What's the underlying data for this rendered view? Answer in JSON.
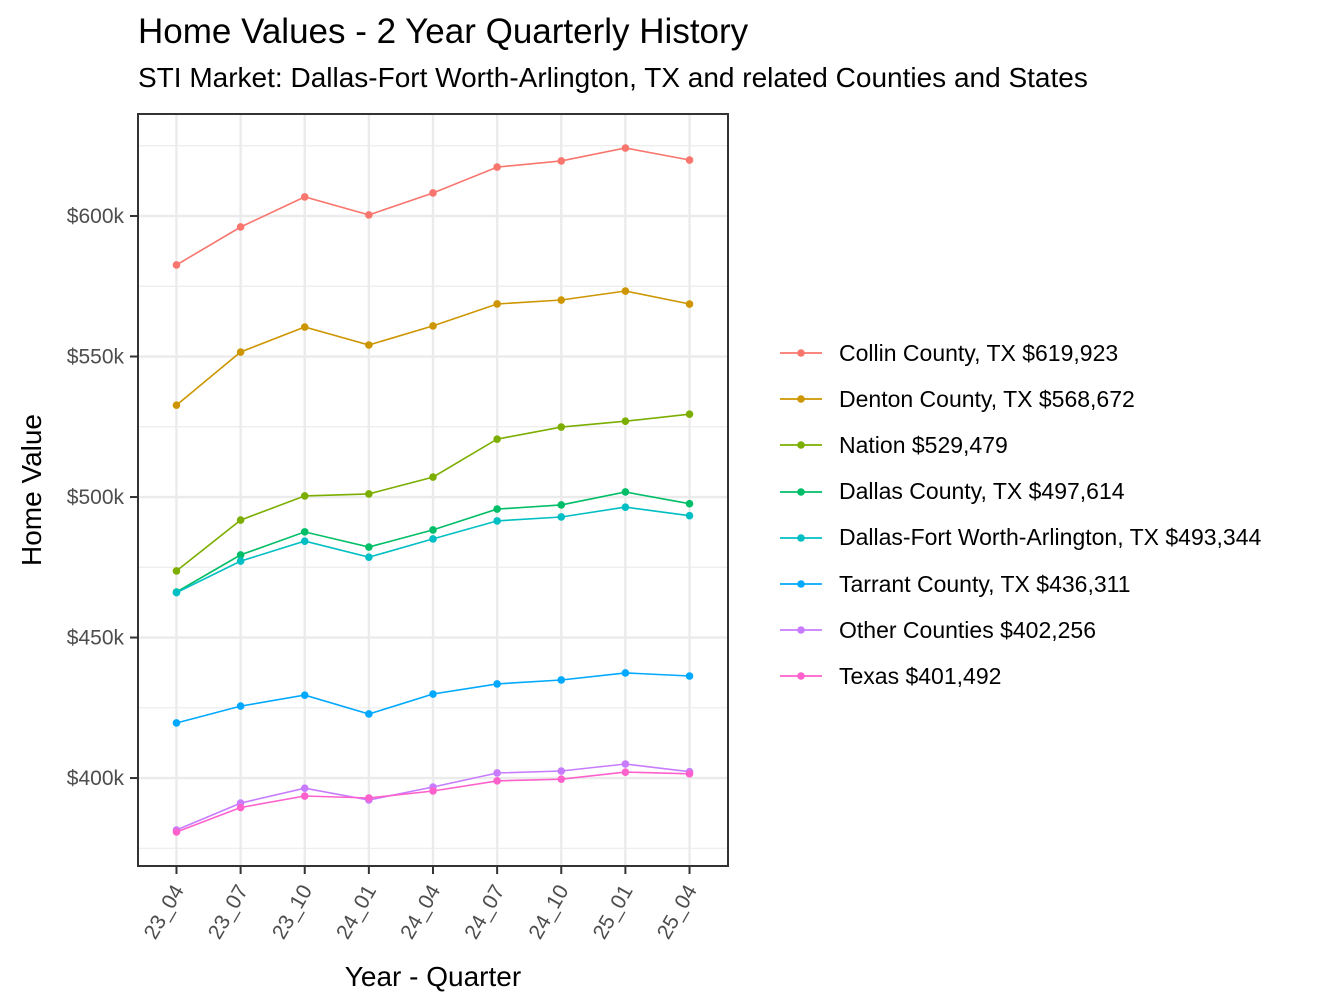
{
  "chart_data": {
    "type": "line",
    "title": "Home Values - 2 Year Quarterly History",
    "subtitle": "STI Market: Dallas-Fort Worth-Arlington, TX and related Counties and States",
    "xlabel": "Year - Quarter",
    "ylabel": "Home Value",
    "categories": [
      "23_04",
      "23_07",
      "23_10",
      "24_01",
      "24_04",
      "24_07",
      "24_10",
      "25_01",
      "25_04"
    ],
    "ylim": [
      368700,
      636300
    ],
    "yticks": [
      400000,
      450000,
      500000,
      550000,
      600000
    ],
    "ytick_labels": [
      "$400k",
      "$450k",
      "$500k",
      "$550k",
      "$600k"
    ],
    "grid": true,
    "legend_position": "right",
    "series": [
      {
        "name": "Collin County, TX $619,923",
        "color": "#F8766D",
        "values": [
          582600,
          596100,
          606800,
          600400,
          608200,
          617400,
          619600,
          624200,
          619923
        ]
      },
      {
        "name": "Denton County, TX $568,672",
        "color": "#CD9600",
        "values": [
          532700,
          551600,
          560500,
          554100,
          560900,
          568700,
          570100,
          573300,
          568672
        ]
      },
      {
        "name": "Nation $529,479",
        "color": "#7CAE00",
        "values": [
          473700,
          491800,
          500400,
          501100,
          507100,
          520600,
          524900,
          527000,
          529479
        ]
      },
      {
        "name": "Dallas County, TX $497,614",
        "color": "#00BE67",
        "values": [
          466200,
          479400,
          487600,
          482200,
          488300,
          495700,
          497200,
          501800,
          497614
        ]
      },
      {
        "name": "Dallas-Fort Worth-Arlington, TX $493,344",
        "color": "#00BFC4",
        "values": [
          466000,
          477200,
          484300,
          478600,
          485100,
          491500,
          492900,
          496400,
          493344
        ]
      },
      {
        "name": "Tarrant County, TX $436,311",
        "color": "#00A9FF",
        "values": [
          419600,
          425600,
          429500,
          422800,
          429900,
          433500,
          434900,
          437400,
          436311
        ]
      },
      {
        "name": "Other Counties $402,256",
        "color": "#C77CFF",
        "values": [
          381500,
          391100,
          396400,
          392200,
          396800,
          401800,
          402500,
          405000,
          402256
        ]
      },
      {
        "name": "Texas $401,492",
        "color": "#FF61CC",
        "values": [
          380800,
          389500,
          393600,
          392900,
          395400,
          399000,
          399600,
          402100,
          401492
        ]
      }
    ]
  }
}
